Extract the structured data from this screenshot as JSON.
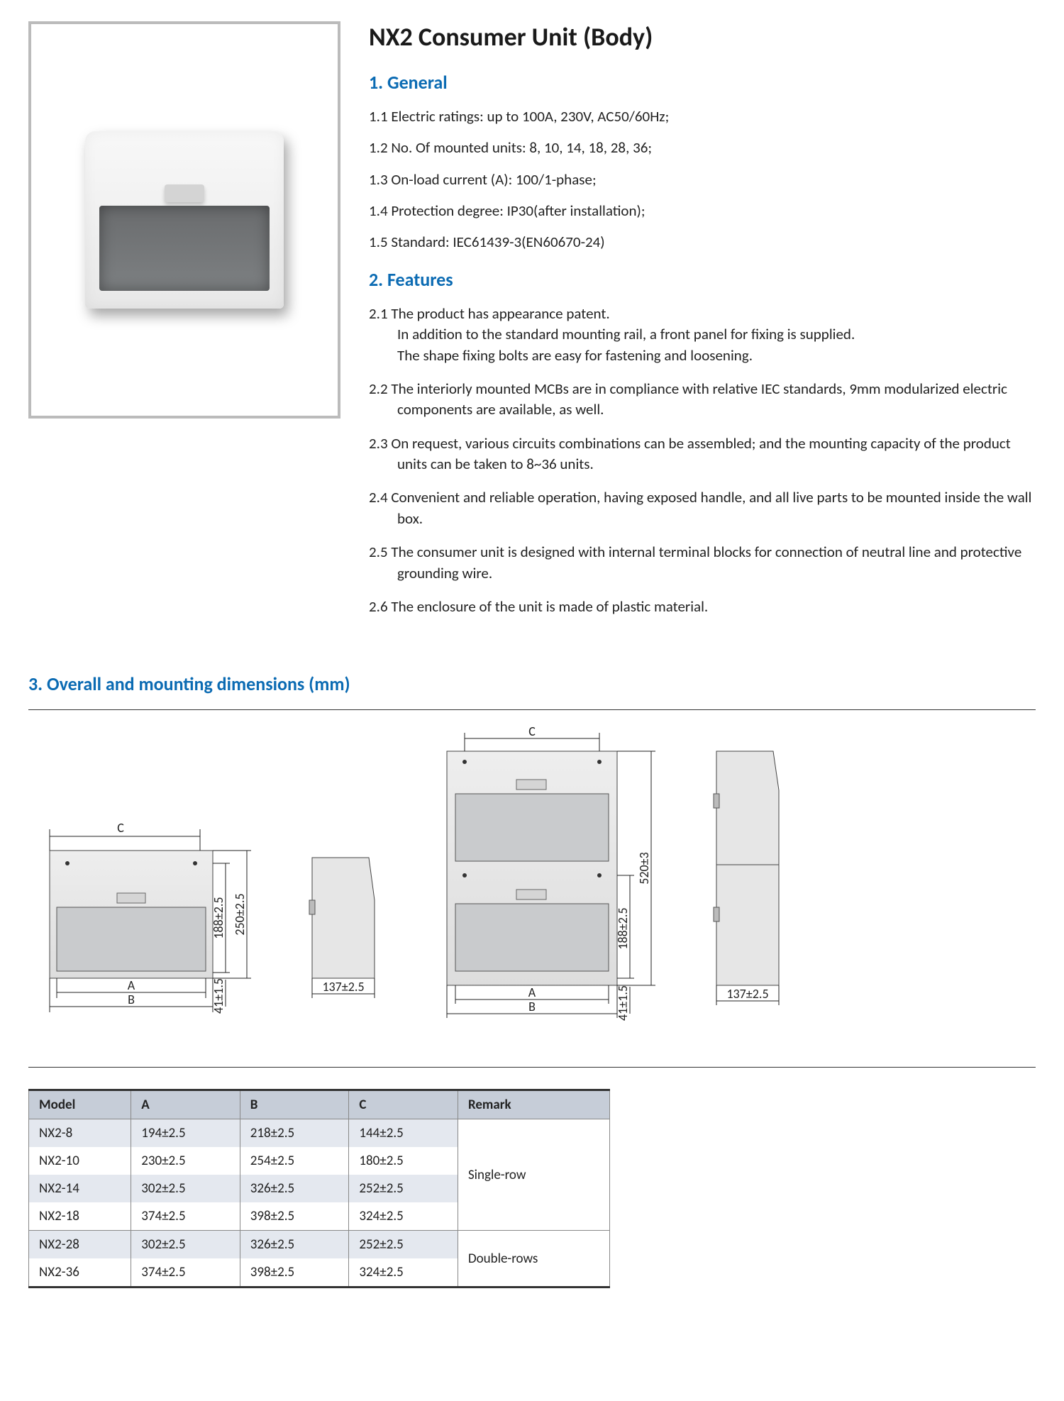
{
  "title": "NX2 Consumer Unit (Body)",
  "sections": {
    "s1": {
      "heading": "1. General",
      "items": [
        "1.1 Electric ratings: up to 100A, 230V,  AC50/60Hz;",
        "1.2 No. Of  mounted units: 8, 10, 14, 18, 28, 36;",
        "1.3 On-load current (A): 100/1-phase;",
        "1.4 Protection degree: IP30(after installation);",
        "1.5 Standard: IEC61439-3(EN60670-24)"
      ]
    },
    "s2": {
      "heading": "2. Features",
      "items": [
        "2.1 The product has appearance patent.\nIn addition to the standard mounting rail, a front panel for fixing is supplied.\nThe shape fixing bolts are easy for fastening and loosening.",
        "2.2 The interiorly mounted MCBs are in compliance with relative IEC standards, 9mm modularized electric components are available, as well.",
        "2.3 On request, various circuits combinations can be assembled; and the mounting capacity of the product units can be taken to 8~36 units.",
        "2.4 Convenient and reliable operation, having exposed handle, and all live parts to be mounted inside the wall box.",
        "2.5 The consumer unit is designed with internal terminal blocks for connection of neutral line and protective grounding wire.",
        "2.6 The enclosure of the unit is made of plastic material."
      ]
    },
    "s3": {
      "heading": "3. Overall and mounting dimensions (mm)"
    }
  },
  "diagram_labels": {
    "A": "A",
    "B": "B",
    "C": "C",
    "d188": "188±2.5",
    "d250": "250±2.5",
    "d41": "41±1.5",
    "d137": "137±2.5",
    "d520": "520±3"
  },
  "table": {
    "columns": [
      "Model",
      "A",
      "B",
      "C",
      "Remark"
    ],
    "rows": [
      {
        "cells": [
          "NX2-8",
          "194±2.5",
          "218±2.5",
          "144±2.5"
        ],
        "alt": true,
        "group": "Single-row",
        "gstart": true,
        "gtop": true
      },
      {
        "cells": [
          "NX2-10",
          "230±2.5",
          "254±2.5",
          "180±2.5"
        ],
        "alt": false
      },
      {
        "cells": [
          "NX2-14",
          "302±2.5",
          "326±2.5",
          "252±2.5"
        ],
        "alt": true
      },
      {
        "cells": [
          "NX2-18",
          "374±2.5",
          "398±2.5",
          "324±2.5"
        ],
        "alt": false
      },
      {
        "cells": [
          "NX2-28",
          "302±2.5",
          "326±2.5",
          "252±2.5"
        ],
        "alt": true,
        "group": "Double-rows",
        "gstart": true,
        "gtop": true
      },
      {
        "cells": [
          "NX2-36",
          "374±2.5",
          "398±2.5",
          "324±2.5"
        ],
        "alt": false
      }
    ],
    "group_spans": {
      "Single-row": 4,
      "Double-rows": 2
    },
    "colors": {
      "header_bg": "#c6cdd8",
      "alt_bg": "#e4e8ef",
      "border": "#888"
    }
  }
}
